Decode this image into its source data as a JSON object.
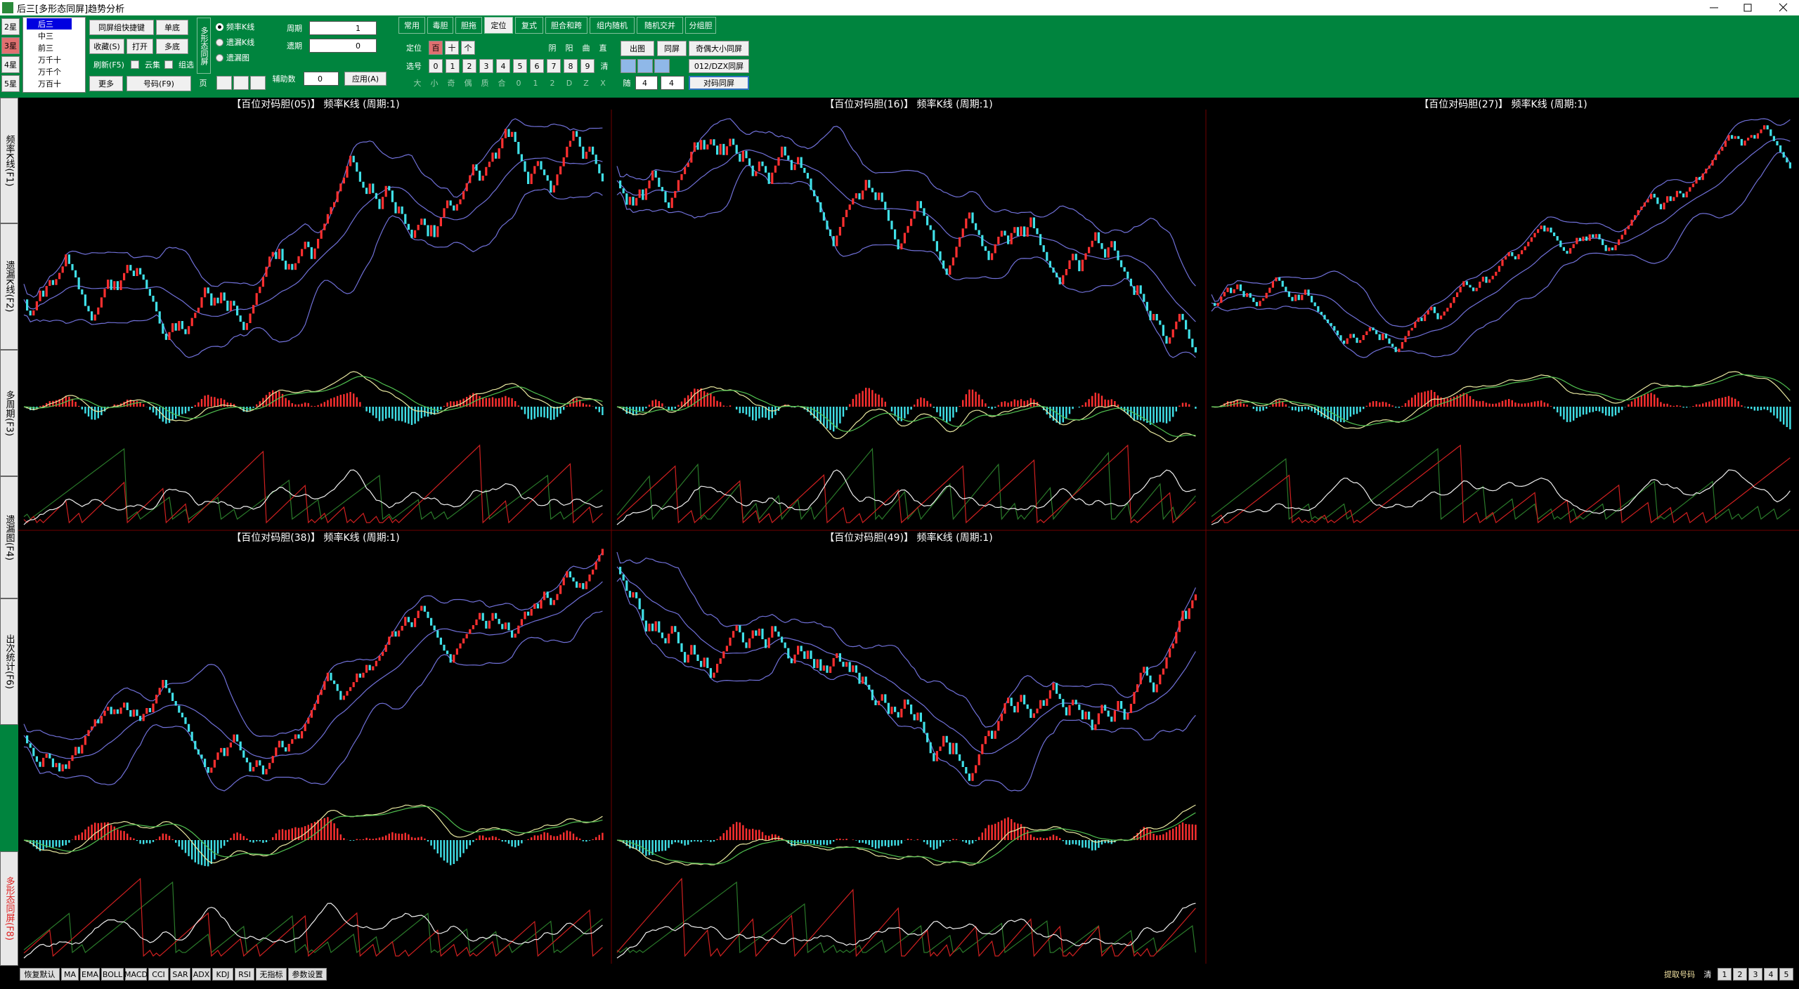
{
  "window": {
    "title": "后三[多形态同屏]趋势分析"
  },
  "toolbar": {
    "stars": [
      "2星",
      "3星",
      "4星",
      "5星"
    ],
    "positions": [
      "后三",
      "中三",
      "前三",
      "万千十",
      "万千个",
      "万百十"
    ],
    "buttons": {
      "quick": "同屏组快捷键",
      "single": "单底",
      "favorite": "收藏(S)",
      "open": "打开",
      "multi": "多底",
      "refresh": "刷新(F5)",
      "more": "更多",
      "number": "号码(F9)"
    },
    "checks": [
      "云集",
      "组选"
    ],
    "group_label": "多形态同屏",
    "radios": [
      "频率K线",
      "遗漏K线",
      "遗漏图"
    ],
    "page_label": "页",
    "period": {
      "label": "周期",
      "value": 1
    },
    "lag": {
      "label": "遗期",
      "value": 0
    },
    "aux": {
      "label": "辅助数",
      "value": 0
    },
    "apply": "应用(A)",
    "tabs": [
      "常用",
      "毒胆",
      "胆拖",
      "定位",
      "复式",
      "胆合和跨",
      "组内随机",
      "随机交并",
      "分组胆"
    ],
    "locate": {
      "label": "定位",
      "places": [
        "百",
        "十",
        "个"
      ],
      "select_label": "选号",
      "digits": [
        "0",
        "1",
        "2",
        "3",
        "4",
        "5",
        "6",
        "7",
        "8",
        "9"
      ],
      "shapes": [
        "阴",
        "阳",
        "曲",
        "直"
      ],
      "clear": "清",
      "filters": [
        "大",
        "小",
        "奇",
        "偶",
        "质",
        "合",
        "0",
        "1",
        "2",
        "D",
        "Z",
        "X"
      ]
    },
    "output": {
      "draw": "出图",
      "same": "同屏",
      "oe": "奇偶大小同屏",
      "dzx": "012/DZX同屏",
      "pair": "对码同屏",
      "random_label": "随",
      "random_a": 4,
      "random_b": 4
    }
  },
  "sidebar": [
    "频率K线(F1)",
    "遗漏K线(F2)",
    "多周期(F3)",
    "遗漏图(F4)",
    "出次统计(F6)",
    "多形态同屏(F8)"
  ],
  "panels": [
    {
      "title": "【百位对码胆(05)】 频率K线 (周期:1)"
    },
    {
      "title": "【百位对码胆(16)】 频率K线 (周期:1)"
    },
    {
      "title": "【百位对码胆(27)】 频率K线 (周期:1)"
    },
    {
      "title": "【百位对码胆(38)】 频率K线 (周期:1)"
    },
    {
      "title": "【百位对码胆(49)】 频率K线 (周期:1)"
    }
  ],
  "indicators": [
    "恢复默认",
    "MA",
    "EMA",
    "BOLL",
    "MACD",
    "CCI",
    "SAR",
    "ADX",
    "KDJ",
    "RSI",
    "无指标",
    "参数设置"
  ],
  "status": {
    "extract": "提取号码",
    "clear": "清",
    "slots": [
      "1",
      "2",
      "3",
      "4",
      "5"
    ]
  }
}
